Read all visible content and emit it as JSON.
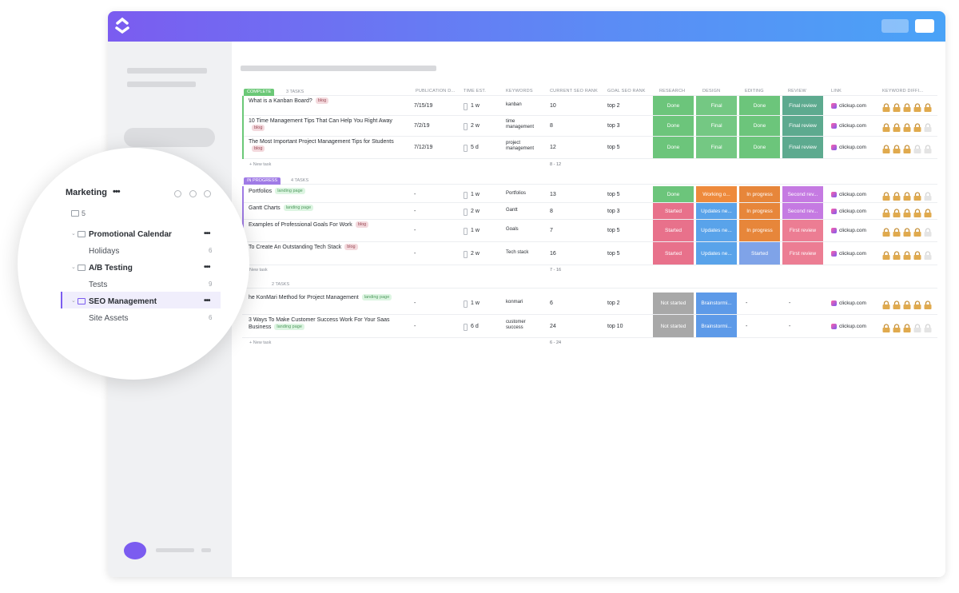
{
  "sidebar": {
    "title": "Marketing",
    "comments": 5,
    "items": [
      {
        "label": "Promotional Calendar",
        "children": [
          {
            "label": "Holidays",
            "count": 6
          }
        ]
      },
      {
        "label": "A/B Testing",
        "children": [
          {
            "label": "Tests",
            "count": 9
          }
        ]
      },
      {
        "label": "SEO Management",
        "children": [
          {
            "label": "Site Assets",
            "count": 6
          }
        ]
      }
    ]
  },
  "table": {
    "columns": [
      "PUBLICATION D...",
      "TIME EST.",
      "KEYWORDS",
      "CURRENT SEO RANK",
      "GOAL SEO RANK",
      "RESEARCH",
      "DESIGN",
      "EDITING",
      "REVIEW",
      "LINK",
      "KEYWORD DIFFI..."
    ],
    "groups": [
      {
        "status": "COMPLETE",
        "status_color": "#6bc877",
        "count": "3 TASKS",
        "new_task": "+ New task",
        "range": "8 - 12",
        "rows": [
          {
            "name": "What is a Kanban Board?",
            "tag": "blog",
            "pub": "7/15/19",
            "time": "1 w",
            "keyword": "kanban",
            "current": 10,
            "goal": "top 2",
            "research": {
              "text": "Done",
              "color": "#6cc57b"
            },
            "design": {
              "text": "Final",
              "color": "#74c883"
            },
            "editing": {
              "text": "Done",
              "color": "#6cc57b"
            },
            "review": {
              "text": "Final review",
              "color": "#5daa8f"
            },
            "link": "clickup.com",
            "difficulty": 5
          },
          {
            "name": "10 Time Management Tips That Can Help You Right Away",
            "tag": "blog",
            "pub": "7/2/19",
            "time": "2 w",
            "keyword": "time management",
            "current": 8,
            "goal": "top 3",
            "research": {
              "text": "Done",
              "color": "#6cc57b"
            },
            "design": {
              "text": "Final",
              "color": "#74c883"
            },
            "editing": {
              "text": "Done",
              "color": "#6cc57b"
            },
            "review": {
              "text": "Final review",
              "color": "#5daa8f"
            },
            "link": "clickup.com",
            "difficulty": 4
          },
          {
            "name": "The Most Important Project Management Tips for Students",
            "tag": "blog",
            "pub": "7/12/19",
            "time": "5 d",
            "keyword": "project management",
            "current": 12,
            "goal": "top 5",
            "research": {
              "text": "Done",
              "color": "#6cc57b"
            },
            "design": {
              "text": "Final",
              "color": "#74c883"
            },
            "editing": {
              "text": "Done",
              "color": "#6cc57b"
            },
            "review": {
              "text": "Final review",
              "color": "#5daa8f"
            },
            "link": "clickup.com",
            "difficulty": 3
          }
        ]
      },
      {
        "status": "IN PROGRESS",
        "status_color": "#a07be6",
        "count": "4 TASKS",
        "new_task": "New task",
        "range": "7 - 16",
        "rows": [
          {
            "name": "Portfolios",
            "tag": "landing page",
            "pub": "-",
            "time": "1 w",
            "keyword": "Portfolios",
            "current": 13,
            "goal": "top 5",
            "research": {
              "text": "Done",
              "color": "#6cc57b"
            },
            "design": {
              "text": "Working o...",
              "color": "#ee8a3c"
            },
            "editing": {
              "text": "In progress",
              "color": "#e7863a"
            },
            "review": {
              "text": "Second rev...",
              "color": "#c57ae2"
            },
            "link": "clickup.com",
            "difficulty": 4
          },
          {
            "name": "Gantt Charts",
            "tag": "landing page",
            "pub": "-",
            "time": "2 w",
            "keyword": "Gantt",
            "current": 8,
            "goal": "top 3",
            "research": {
              "text": "Started",
              "color": "#e8718b"
            },
            "design": {
              "text": "Updates ne...",
              "color": "#59a3ea"
            },
            "editing": {
              "text": "In progress",
              "color": "#e7863a"
            },
            "review": {
              "text": "Second rev...",
              "color": "#c57ae2"
            },
            "link": "clickup.com",
            "difficulty": 5
          },
          {
            "name": "Examples of Professional Goals For Work",
            "tag": "blog",
            "pub": "-",
            "time": "1 w",
            "keyword": "Goals",
            "current": 7,
            "goal": "top 5",
            "research": {
              "text": "Started",
              "color": "#e8718b"
            },
            "design": {
              "text": "Updates ne...",
              "color": "#59a3ea"
            },
            "editing": {
              "text": "In progress",
              "color": "#e7863a"
            },
            "review": {
              "text": "First review",
              "color": "#ec7d93"
            },
            "link": "clickup.com",
            "difficulty": 4
          },
          {
            "name": "To Create An Outstanding Tech Stack",
            "tag": "blog",
            "pub": "-",
            "time": "2 w",
            "keyword": "Tech stack",
            "current": 16,
            "goal": "top 5",
            "research": {
              "text": "Started",
              "color": "#e8718b"
            },
            "design": {
              "text": "Updates ne...",
              "color": "#59a3ea"
            },
            "editing": {
              "text": "Started",
              "color": "#7fa3e8"
            },
            "review": {
              "text": "First review",
              "color": "#ec7d93"
            },
            "link": "clickup.com",
            "difficulty": 4
          }
        ]
      },
      {
        "count": "2 TASKS",
        "new_task": "+ New task",
        "range": "6 - 24",
        "rows": [
          {
            "name": "he KonMari Method for Project Management",
            "tag": "landing page",
            "pub": "-",
            "time": "1 w",
            "keyword": "konmari",
            "current": 6,
            "goal": "top 2",
            "research": {
              "text": "Not started",
              "color": "#a8a8a8"
            },
            "design": {
              "text": "Brainstormi...",
              "color": "#5d9ae8"
            },
            "editing": {
              "text": "-"
            },
            "review": {
              "text": "-"
            },
            "link": "clickup.com",
            "difficulty": 5
          },
          {
            "name": "3 Ways To Make Customer Success Work For Your Saas Business",
            "tag": "landing page",
            "pub": "-",
            "time": "6 d",
            "keyword": "customer success",
            "current": 24,
            "goal": "top 10",
            "research": {
              "text": "Not started",
              "color": "#a8a8a8"
            },
            "design": {
              "text": "Brainstormi...",
              "color": "#5d9ae8"
            },
            "editing": {
              "text": "-"
            },
            "review": {
              "text": "-"
            },
            "link": "clickup.com",
            "difficulty": 3
          }
        ]
      }
    ]
  }
}
